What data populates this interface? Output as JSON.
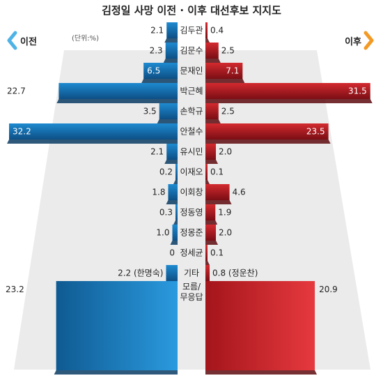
{
  "chart_data": {
    "type": "bar",
    "title": "김정일 사망 이전 · 이후 대선후보 지지도",
    "unit_note": "(단위:%)",
    "left_label": "이전",
    "right_label": "이후",
    "xlim": [
      0,
      32.2
    ],
    "categories": [
      "김두관",
      "김문수",
      "문재인",
      "박근혜",
      "손학규",
      "안철수",
      "유시민",
      "이재오",
      "이회창",
      "정동영",
      "정몽준",
      "정세균",
      "기타",
      "모름/\n무응답"
    ],
    "series": [
      {
        "name": "이전",
        "values": [
          2.1,
          2.3,
          6.5,
          22.7,
          3.5,
          32.2,
          2.1,
          0.2,
          1.8,
          0.3,
          1.0,
          0,
          2.2,
          23.2
        ],
        "labels": [
          "2.1",
          "2.3",
          "6.5",
          "22.7",
          "3.5",
          "32.2",
          "2.1",
          "0.2",
          "1.8",
          "0.3",
          "1.0",
          "0",
          "2.2 (한명숙)",
          "23.2"
        ]
      },
      {
        "name": "이후",
        "values": [
          0.4,
          2.5,
          7.1,
          31.5,
          2.5,
          23.5,
          2.0,
          0.1,
          4.6,
          1.9,
          2.0,
          0.1,
          0.8,
          20.9
        ],
        "labels": [
          "0.4",
          "2.5",
          "7.1",
          "31.5",
          "2.5",
          "23.5",
          "2.0",
          "0.1",
          "4.6",
          "1.9",
          "2.0",
          "0.1",
          "0.8 (정운찬)",
          "20.9"
        ]
      }
    ],
    "colors": {
      "left_bar": "#1f86c9",
      "left_dark": "#0f4f80",
      "right_bar": "#d42a2f",
      "right_dark": "#7d0f14",
      "arrow_left": "#4fb3e6",
      "arrow_right": "#f39a25",
      "floor": "#ebebeb"
    }
  }
}
